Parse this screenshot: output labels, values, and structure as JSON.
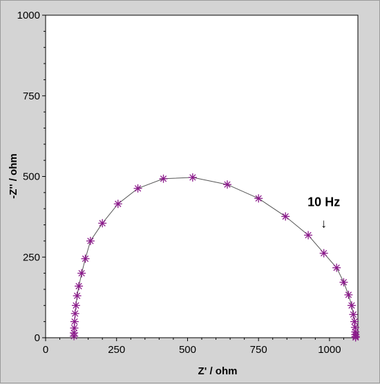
{
  "chart_data": {
    "type": "scatter",
    "title": "",
    "xlabel": "Z' / ohm",
    "ylabel": "-Z'' / ohm",
    "xlim": [
      0,
      1100
    ],
    "ylim": [
      0,
      1000
    ],
    "xticks": [
      0,
      250,
      500,
      750,
      1000
    ],
    "yticks": [
      0,
      250,
      500,
      750,
      1000
    ],
    "grid": false,
    "series": [
      {
        "color": "#8b1a8b",
        "marker": "asterisk",
        "line": true,
        "x": [
          100,
          100,
          101,
          102,
          104,
          107,
          111,
          117,
          127,
          140,
          158,
          200,
          255,
          325,
          415,
          518,
          640,
          750,
          845,
          925,
          980,
          1025,
          1050,
          1067,
          1078,
          1084,
          1088,
          1090,
          1091,
          1091,
          1092,
          1092
        ],
        "y": [
          5,
          15,
          30,
          50,
          75,
          100,
          130,
          160,
          200,
          245,
          300,
          355,
          415,
          463,
          493,
          497,
          475,
          432,
          376,
          318,
          262,
          217,
          172,
          133,
          100,
          72,
          50,
          32,
          18,
          10,
          4,
          1
        ]
      }
    ],
    "annotations": [
      {
        "text": "10 Hz",
        "x": 980,
        "y": 318,
        "arrow": "↓"
      }
    ]
  }
}
